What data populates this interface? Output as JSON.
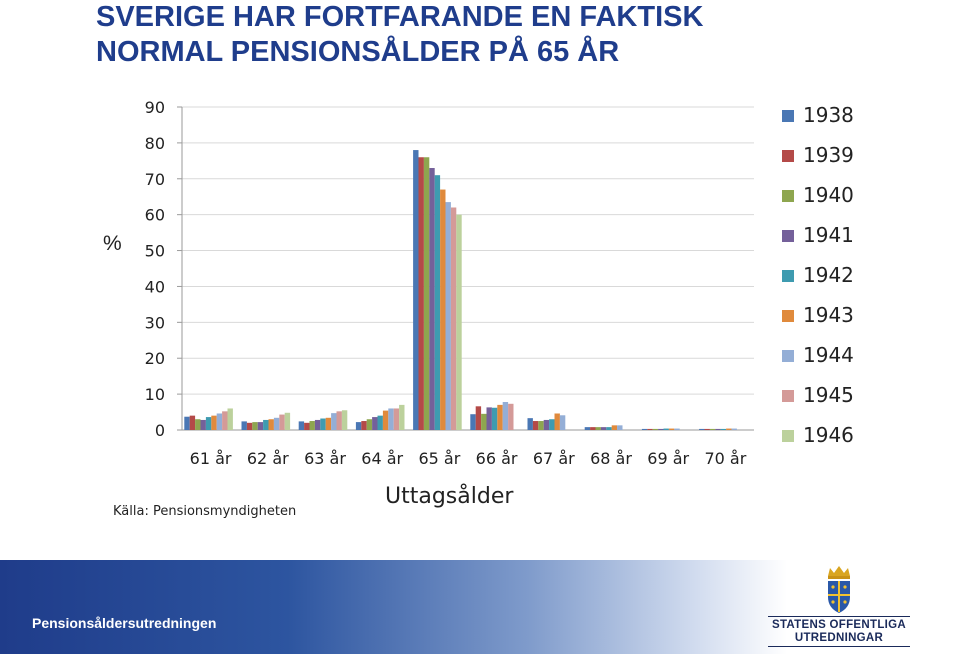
{
  "title": {
    "line1": "SVERIGE HAR FORTFARANDE EN FAKTISK",
    "line2": "NORMAL PENSIONSÅLDER PÅ 65 ÅR"
  },
  "source": "Källa: Pensionsmyndigheten",
  "footer": {
    "text": "Pensionsåldersutredningen",
    "logo_line1": "STATENS OFFENTLIGA",
    "logo_line2": "UTREDNINGAR",
    "logo_icon": "crown-shield-icon"
  },
  "chart_data": {
    "type": "bar",
    "title": "",
    "xlabel": "Uttagsålder",
    "ylabel": "%",
    "ylim": [
      0,
      90
    ],
    "yticks": [
      0,
      10,
      20,
      30,
      40,
      50,
      60,
      70,
      80,
      90
    ],
    "grid": true,
    "legend_position": "right",
    "categories": [
      "61 år",
      "62 år",
      "63 år",
      "64 år",
      "65 år",
      "66 år",
      "67 år",
      "68 år",
      "69 år",
      "70 år"
    ],
    "series": [
      {
        "name": "1938",
        "color": "#4a77b4",
        "values": [
          3.7,
          2.4,
          2.4,
          2.2,
          78.0,
          4.4,
          3.3,
          0.8,
          0.3,
          0.3
        ]
      },
      {
        "name": "1939",
        "color": "#b44a48",
        "values": [
          4.0,
          2.0,
          2.0,
          2.5,
          76.0,
          6.6,
          2.5,
          0.8,
          0.3,
          0.3
        ]
      },
      {
        "name": "1940",
        "color": "#8ea64f",
        "values": [
          3.0,
          2.2,
          2.5,
          3.0,
          76.0,
          4.5,
          2.5,
          0.8,
          0.3,
          0.3
        ]
      },
      {
        "name": "1941",
        "color": "#74609a",
        "values": [
          2.8,
          2.2,
          2.8,
          3.6,
          73.0,
          6.3,
          2.8,
          0.8,
          0.3,
          0.3
        ]
      },
      {
        "name": "1942",
        "color": "#3e9bb0",
        "values": [
          3.6,
          2.8,
          3.2,
          4.0,
          71.0,
          6.2,
          3.0,
          0.8,
          0.4,
          0.3
        ]
      },
      {
        "name": "1943",
        "color": "#e08a3c",
        "values": [
          4.0,
          3.0,
          3.4,
          5.4,
          67.0,
          7.0,
          4.6,
          1.3,
          0.4,
          0.4
        ]
      },
      {
        "name": "1944",
        "color": "#94aed6",
        "values": [
          4.6,
          3.4,
          4.7,
          6.0,
          63.5,
          7.8,
          4.1,
          1.3,
          0.4,
          0.4
        ]
      },
      {
        "name": "1945",
        "color": "#d49a98",
        "values": [
          5.2,
          4.3,
          5.2,
          6.0,
          62.0,
          7.3,
          0,
          0,
          0,
          0
        ]
      },
      {
        "name": "1946",
        "color": "#bcd19c",
        "values": [
          6.0,
          4.8,
          5.5,
          7.0,
          60.0,
          0,
          0,
          0,
          0,
          0
        ]
      }
    ]
  }
}
